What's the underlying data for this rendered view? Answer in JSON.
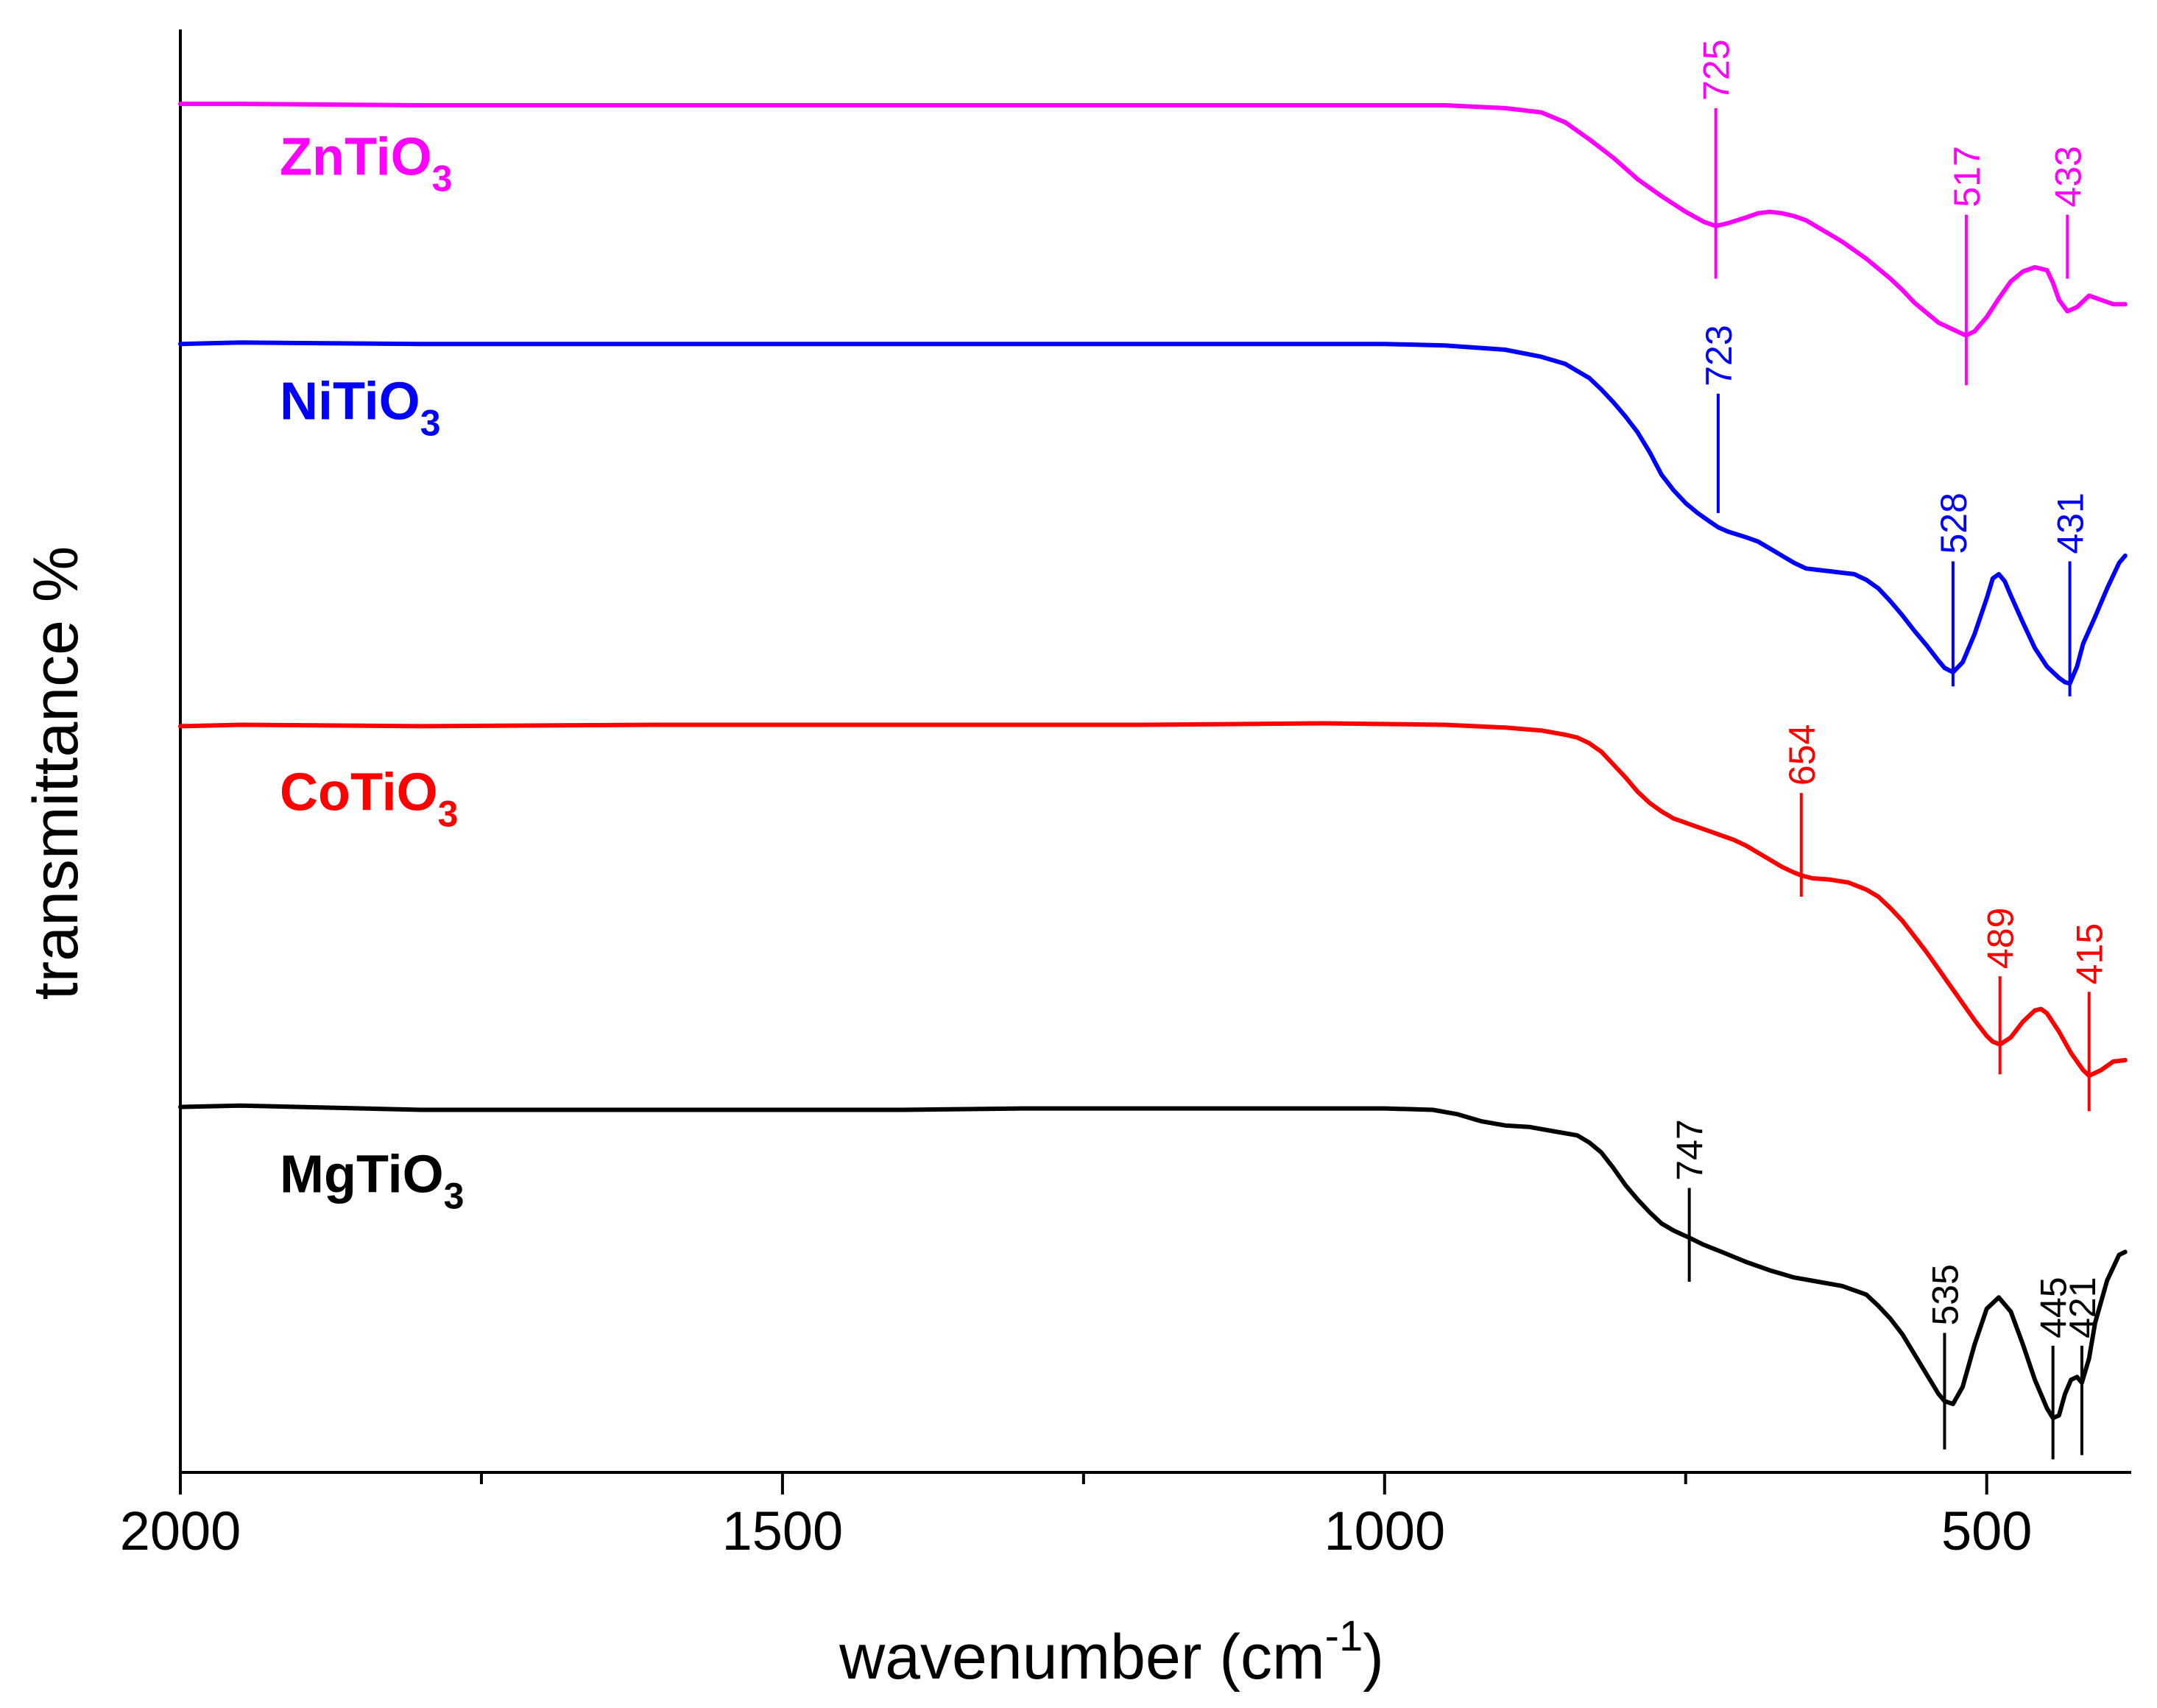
{
  "chart_data": {
    "type": "line",
    "title": "",
    "xlabel": "wavenumber (cm",
    "xlabel_superscript": "-1",
    "xlabel_suffix": ")",
    "ylabel": "transmittance %",
    "xlim": [
      2000,
      380
    ],
    "x_reversed": true,
    "xticks": [
      "2000",
      "1500",
      "1000",
      "500"
    ],
    "xtick_values": [
      2000,
      1500,
      1000,
      500
    ],
    "minor_xtick_values": [
      1750,
      1250,
      750
    ],
    "ylim": [
      0,
      1
    ],
    "y_ticks_shown": false,
    "grid": false,
    "legend": "none",
    "series": [
      {
        "name": "ZnTiO3",
        "label_main": "ZnTiO",
        "label_sub": "3",
        "color": "#ff00ff",
        "x": [
          2000,
          1950,
          1800,
          1600,
          1400,
          1200,
          1000,
          950,
          900,
          870,
          850,
          830,
          810,
          790,
          770,
          750,
          735,
          725,
          715,
          700,
          690,
          680,
          670,
          660,
          650,
          640,
          630,
          620,
          610,
          600,
          590,
          580,
          570,
          560,
          550,
          540,
          530,
          520,
          517,
          510,
          500,
          490,
          480,
          470,
          460,
          450,
          445,
          440,
          433,
          425,
          415,
          405,
          395,
          385
        ],
        "y": [
          0.958,
          0.958,
          0.957,
          0.957,
          0.957,
          0.957,
          0.957,
          0.957,
          0.955,
          0.952,
          0.945,
          0.933,
          0.92,
          0.905,
          0.893,
          0.882,
          0.875,
          0.872,
          0.874,
          0.878,
          0.881,
          0.882,
          0.881,
          0.879,
          0.876,
          0.871,
          0.866,
          0.861,
          0.855,
          0.849,
          0.842,
          0.835,
          0.827,
          0.818,
          0.811,
          0.804,
          0.8,
          0.796,
          0.795,
          0.798,
          0.808,
          0.821,
          0.833,
          0.84,
          0.843,
          0.841,
          0.832,
          0.82,
          0.812,
          0.815,
          0.823,
          0.82,
          0.817,
          0.817
        ]
      },
      {
        "name": "NiTiO3",
        "label_main": "NiTiO",
        "label_sub": "3",
        "color": "#0000ff",
        "x": [
          2000,
          1950,
          1800,
          1600,
          1400,
          1200,
          1000,
          950,
          900,
          870,
          850,
          830,
          820,
          810,
          800,
          790,
          780,
          770,
          760,
          750,
          740,
          730,
          723,
          715,
          700,
          690,
          680,
          670,
          660,
          650,
          640,
          630,
          620,
          610,
          600,
          590,
          580,
          570,
          560,
          550,
          540,
          535,
          528,
          520,
          510,
          500,
          495,
          490,
          485,
          480,
          470,
          460,
          450,
          440,
          435,
          431,
          425,
          420,
          410,
          400,
          390,
          385
        ],
        "y": [
          0.789,
          0.79,
          0.789,
          0.789,
          0.789,
          0.789,
          0.789,
          0.788,
          0.785,
          0.78,
          0.775,
          0.765,
          0.757,
          0.748,
          0.738,
          0.727,
          0.713,
          0.697,
          0.686,
          0.677,
          0.67,
          0.664,
          0.66,
          0.657,
          0.653,
          0.65,
          0.645,
          0.64,
          0.635,
          0.631,
          0.63,
          0.629,
          0.628,
          0.627,
          0.623,
          0.617,
          0.608,
          0.598,
          0.587,
          0.577,
          0.566,
          0.561,
          0.558,
          0.565,
          0.585,
          0.61,
          0.624,
          0.627,
          0.622,
          0.612,
          0.593,
          0.575,
          0.562,
          0.554,
          0.551,
          0.55,
          0.562,
          0.578,
          0.597,
          0.617,
          0.635,
          0.64
        ]
      },
      {
        "name": "CoTiO3",
        "label_main": "CoTiO",
        "label_sub": "3",
        "color": "#ff0000",
        "x": [
          2000,
          1950,
          1800,
          1600,
          1400,
          1200,
          1050,
          950,
          900,
          870,
          850,
          840,
          830,
          820,
          810,
          800,
          790,
          780,
          770,
          760,
          750,
          740,
          730,
          720,
          710,
          700,
          690,
          680,
          670,
          660,
          654,
          645,
          630,
          615,
          600,
          590,
          580,
          570,
          560,
          550,
          540,
          530,
          520,
          510,
          500,
          495,
          489,
          480,
          470,
          460,
          455,
          450,
          440,
          430,
          420,
          415,
          405,
          395,
          385
        ],
        "y": [
          0.52,
          0.521,
          0.52,
          0.521,
          0.521,
          0.521,
          0.522,
          0.521,
          0.519,
          0.517,
          0.514,
          0.512,
          0.508,
          0.502,
          0.493,
          0.484,
          0.474,
          0.466,
          0.46,
          0.455,
          0.452,
          0.449,
          0.446,
          0.443,
          0.44,
          0.436,
          0.431,
          0.426,
          0.421,
          0.417,
          0.415,
          0.413,
          0.412,
          0.41,
          0.405,
          0.4,
          0.392,
          0.383,
          0.372,
          0.361,
          0.349,
          0.337,
          0.325,
          0.313,
          0.302,
          0.298,
          0.296,
          0.301,
          0.312,
          0.32,
          0.321,
          0.318,
          0.305,
          0.29,
          0.278,
          0.274,
          0.278,
          0.284,
          0.285
        ]
      },
      {
        "name": "MgTiO3",
        "label_main": "MgTiO",
        "label_sub": "3",
        "color": "#000000",
        "x": [
          2000,
          1950,
          1800,
          1600,
          1400,
          1300,
          1200,
          1100,
          1000,
          960,
          940,
          920,
          900,
          880,
          860,
          840,
          830,
          820,
          810,
          800,
          790,
          780,
          770,
          760,
          747,
          735,
          720,
          700,
          680,
          660,
          640,
          620,
          600,
          590,
          580,
          570,
          560,
          550,
          540,
          535,
          528,
          520,
          510,
          500,
          490,
          480,
          470,
          460,
          450,
          445,
          440,
          435,
          430,
          425,
          421,
          415,
          410,
          400,
          390,
          385
        ],
        "y": [
          0.252,
          0.253,
          0.25,
          0.25,
          0.25,
          0.251,
          0.251,
          0.251,
          0.251,
          0.25,
          0.247,
          0.242,
          0.239,
          0.238,
          0.235,
          0.232,
          0.227,
          0.22,
          0.209,
          0.197,
          0.187,
          0.178,
          0.17,
          0.165,
          0.16,
          0.155,
          0.15,
          0.143,
          0.137,
          0.132,
          0.129,
          0.126,
          0.12,
          0.112,
          0.103,
          0.092,
          0.078,
          0.064,
          0.05,
          0.045,
          0.043,
          0.055,
          0.085,
          0.11,
          0.118,
          0.108,
          0.085,
          0.06,
          0.04,
          0.033,
          0.035,
          0.05,
          0.06,
          0.062,
          0.058,
          0.075,
          0.1,
          0.13,
          0.148,
          0.15
        ]
      }
    ],
    "peak_markers": [
      {
        "series": "ZnTiO3",
        "label": "725",
        "x": 725,
        "y_top": 0.955,
        "y_bottom": 0.835,
        "color": "#ff00ff"
      },
      {
        "series": "ZnTiO3",
        "label": "517",
        "x": 517,
        "y_top": 0.88,
        "y_bottom": 0.76,
        "color": "#ff00ff"
      },
      {
        "series": "ZnTiO3",
        "label": "433",
        "x": 433,
        "y_top": 0.88,
        "y_bottom": 0.835,
        "color": "#ff00ff"
      },
      {
        "series": "NiTiO3",
        "label": "723",
        "x": 723,
        "y_top": 0.754,
        "y_bottom": 0.67,
        "color": "#0000ff"
      },
      {
        "series": "NiTiO3",
        "label": "528",
        "x": 528,
        "y_top": 0.636,
        "y_bottom": 0.548,
        "color": "#0000ff"
      },
      {
        "series": "NiTiO3",
        "label": "431",
        "x": 431,
        "y_top": 0.636,
        "y_bottom": 0.541,
        "color": "#0000ff"
      },
      {
        "series": "CoTiO3",
        "label": "654",
        "x": 654,
        "y_top": 0.473,
        "y_bottom": 0.4,
        "color": "#ff0000"
      },
      {
        "series": "CoTiO3",
        "label": "489",
        "x": 489,
        "y_top": 0.344,
        "y_bottom": 0.275,
        "color": "#ff0000"
      },
      {
        "series": "CoTiO3",
        "label": "415",
        "x": 415,
        "y_top": 0.333,
        "y_bottom": 0.249,
        "color": "#ff0000"
      },
      {
        "series": "MgTiO3",
        "label": "747",
        "x": 747,
        "y_top": 0.195,
        "y_bottom": 0.129,
        "color": "#000000"
      },
      {
        "series": "MgTiO3",
        "label": "535",
        "x": 535,
        "y_top": 0.093,
        "y_bottom": 0.011,
        "color": "#000000"
      },
      {
        "series": "MgTiO3",
        "label": "445",
        "x": 445,
        "y_top": 0.084,
        "y_bottom": 0.004,
        "color": "#000000"
      },
      {
        "series": "MgTiO3",
        "label": "421",
        "x": 421,
        "y_top": 0.084,
        "y_bottom": 0.007,
        "color": "#000000"
      }
    ]
  }
}
